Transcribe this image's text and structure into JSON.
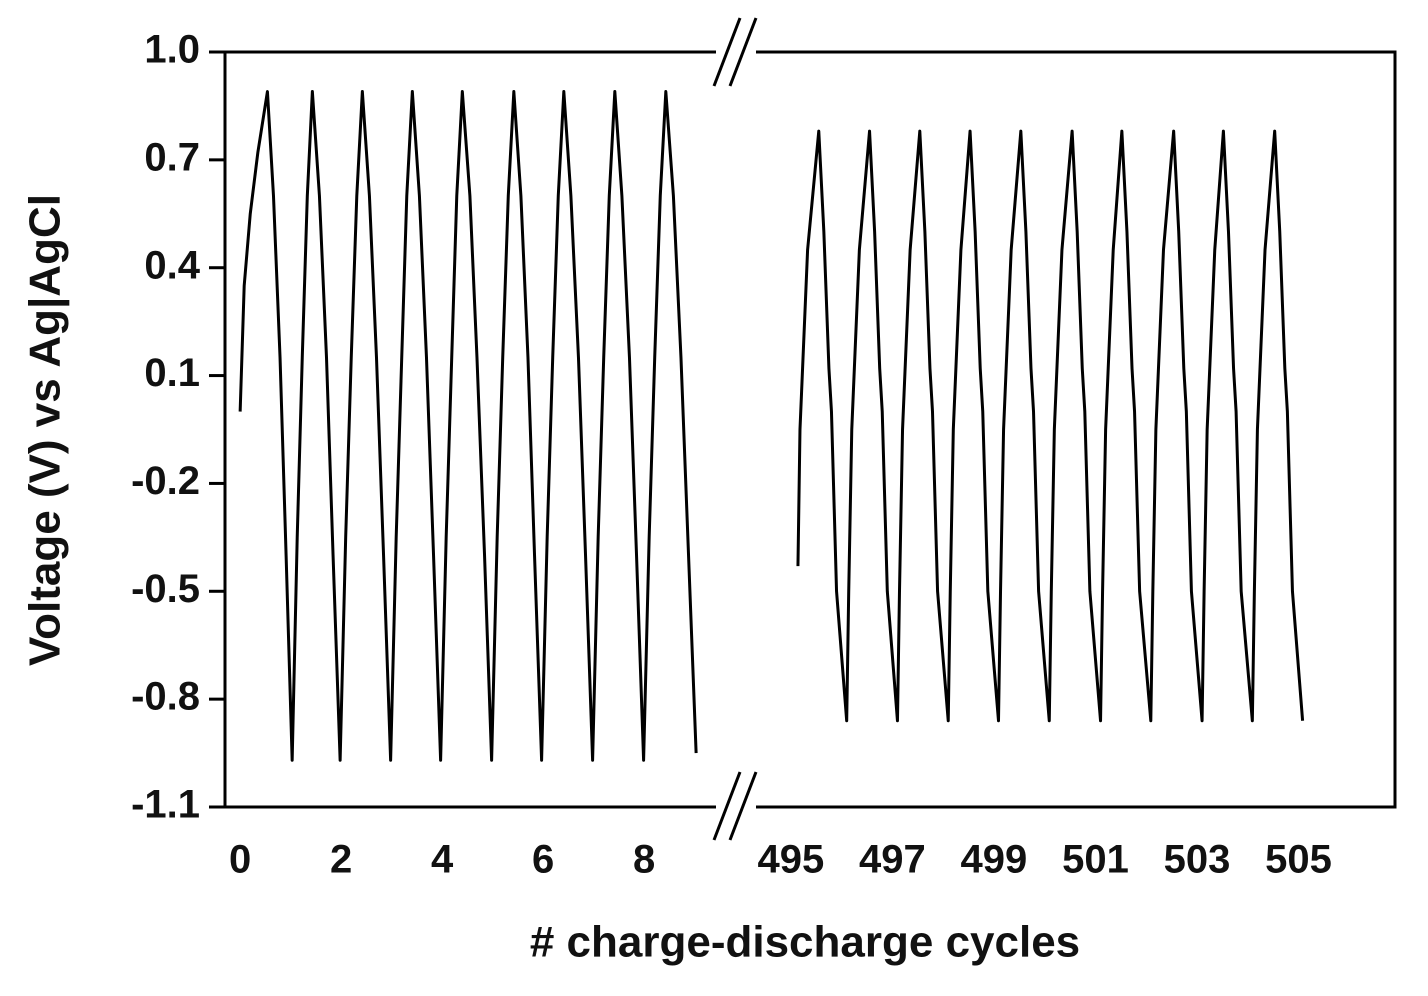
{
  "chart_data": {
    "type": "line",
    "xlabel": "# charge-discharge cycles",
    "ylabel": "Voltage (V) vs Ag|AgCl",
    "ylim": [
      -1.1,
      1.0
    ],
    "yticks": [
      -1.1,
      -0.8,
      -0.5,
      -0.2,
      0.1,
      0.4,
      0.7,
      {
        "value": 1.0,
        "label": "1.0"
      }
    ],
    "color": "#000000",
    "panels": [
      {
        "xlim": [
          -0.3,
          9.8
        ],
        "xticks": [
          0,
          2,
          4,
          6,
          8
        ],
        "series": [
          {
            "color": "#000000",
            "x": [
              0,
              0.08,
              0.2,
              0.35,
              0.54,
              0.66,
              0.79,
              0.91,
              1.03,
              1.13,
              1.23,
              1.33,
              1.43,
              1.57,
              1.71,
              1.84,
              1.98,
              2.09,
              2.2,
              2.31,
              2.42,
              2.56,
              2.7,
              2.84,
              2.98,
              3.09,
              3.2,
              3.3,
              3.41,
              3.55,
              3.69,
              3.83,
              3.97,
              4.08,
              4.19,
              4.29,
              4.4,
              4.55,
              4.69,
              4.84,
              4.98,
              5.09,
              5.2,
              5.31,
              5.42,
              5.56,
              5.7,
              5.83,
              5.97,
              6.08,
              6.19,
              6.3,
              6.41,
              6.55,
              6.7,
              6.84,
              6.98,
              7.09,
              7.2,
              7.31,
              7.42,
              7.56,
              7.71,
              7.85,
              7.99,
              8.1,
              8.21,
              8.32,
              8.43,
              8.58,
              8.73,
              8.88,
              9.03
            ],
            "values": [
              0.0,
              0.35,
              0.55,
              0.72,
              0.89,
              0.6,
              0.15,
              -0.4,
              -0.97,
              -0.35,
              0.15,
              0.6,
              0.89,
              0.6,
              0.15,
              -0.4,
              -0.97,
              -0.35,
              0.15,
              0.6,
              0.89,
              0.6,
              0.15,
              -0.4,
              -0.97,
              -0.35,
              0.15,
              0.6,
              0.89,
              0.6,
              0.15,
              -0.4,
              -0.97,
              -0.35,
              0.15,
              0.6,
              0.89,
              0.6,
              0.15,
              -0.4,
              -0.97,
              -0.35,
              0.15,
              0.6,
              0.89,
              0.6,
              0.15,
              -0.4,
              -0.97,
              -0.35,
              0.15,
              0.6,
              0.89,
              0.6,
              0.15,
              -0.4,
              -0.97,
              -0.35,
              0.15,
              0.6,
              0.89,
              0.6,
              0.15,
              -0.4,
              -0.97,
              -0.35,
              0.15,
              0.6,
              0.89,
              0.6,
              0.15,
              -0.4,
              -0.95
            ]
          }
        ]
      },
      {
        "xlim": [
          493.9,
          506.9
        ],
        "xticks": [
          495,
          497,
          499,
          501,
          503,
          505
        ],
        "series": [
          {
            "color": "#000000",
            "x": [
              495.14,
              495.18,
              495.21,
              495.33,
              495.55,
              495.65,
              495.75,
              495.8,
              495.9,
              496.1,
              496.14,
              496.2,
              496.23,
              496.35,
              496.55,
              496.65,
              496.75,
              496.8,
              496.9,
              497.1,
              497.14,
              497.2,
              497.23,
              497.35,
              497.54,
              497.64,
              497.74,
              497.79,
              497.89,
              498.1,
              498.14,
              498.2,
              498.23,
              498.35,
              498.53,
              498.63,
              498.73,
              498.78,
              498.88,
              499.09,
              499.13,
              499.19,
              499.22,
              499.34,
              499.53,
              499.63,
              499.73,
              499.78,
              499.88,
              500.09,
              500.13,
              500.19,
              500.22,
              500.34,
              500.54,
              500.64,
              500.74,
              500.79,
              500.89,
              501.1,
              501.14,
              501.2,
              501.23,
              501.35,
              501.52,
              501.62,
              501.72,
              501.77,
              501.87,
              502.09,
              502.13,
              502.19,
              502.22,
              502.34,
              502.54,
              502.64,
              502.74,
              502.79,
              502.89,
              503.1,
              503.14,
              503.2,
              503.23,
              503.35,
              503.52,
              503.62,
              503.72,
              503.77,
              503.87,
              504.09,
              504.13,
              504.19,
              504.22,
              504.34,
              504.53,
              504.63,
              504.73,
              504.78,
              504.88,
              505.08
            ],
            "values": [
              -0.43,
              -0.05,
              0.05,
              0.45,
              0.78,
              0.5,
              0.12,
              0.0,
              -0.5,
              -0.86,
              -0.5,
              -0.05,
              0.05,
              0.45,
              0.78,
              0.5,
              0.12,
              0.0,
              -0.5,
              -0.86,
              -0.5,
              -0.05,
              0.05,
              0.45,
              0.78,
              0.5,
              0.12,
              0.0,
              -0.5,
              -0.86,
              -0.5,
              -0.05,
              0.05,
              0.45,
              0.78,
              0.5,
              0.12,
              0.0,
              -0.5,
              -0.86,
              -0.5,
              -0.05,
              0.05,
              0.45,
              0.78,
              0.5,
              0.12,
              0.0,
              -0.5,
              -0.86,
              -0.5,
              -0.05,
              0.05,
              0.45,
              0.78,
              0.5,
              0.12,
              0.0,
              -0.5,
              -0.86,
              -0.5,
              -0.05,
              0.05,
              0.45,
              0.78,
              0.5,
              0.12,
              0.0,
              -0.5,
              -0.86,
              -0.5,
              -0.05,
              0.05,
              0.45,
              0.78,
              0.5,
              0.12,
              0.0,
              -0.5,
              -0.86,
              -0.5,
              -0.05,
              0.05,
              0.45,
              0.78,
              0.5,
              0.12,
              0.0,
              -0.5,
              -0.86,
              -0.5,
              -0.05,
              0.05,
              0.45,
              0.78,
              0.5,
              0.12,
              0.0,
              -0.5,
              -0.86
            ]
          }
        ]
      }
    ]
  }
}
